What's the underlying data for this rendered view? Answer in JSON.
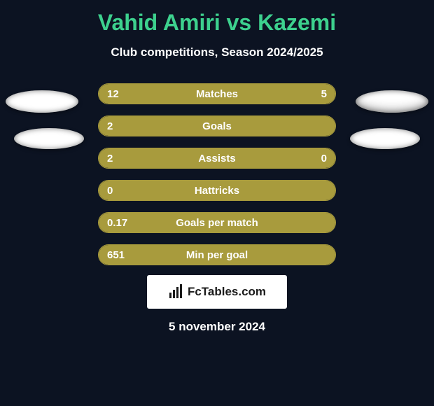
{
  "title": "Vahid Amiri vs Kazemi",
  "subtitle": "Club competitions, Season 2024/2025",
  "date": "5 november 2024",
  "brand": "FcTables.com",
  "colors": {
    "background": "#0c1322",
    "title": "#3dd18e",
    "text": "#ffffff",
    "bar_fill": "#a89b3d",
    "bar_border": "#a79a3c",
    "brand_bg": "#ffffff",
    "brand_text": "#1a1a1a",
    "ellipse": "#ffffff"
  },
  "bars": [
    {
      "label": "Matches",
      "left_val": "12",
      "right_val": "5",
      "left_pct": 70,
      "right_pct": 30,
      "show_right_fill": true
    },
    {
      "label": "Goals",
      "left_val": "2",
      "right_val": "",
      "left_pct": 100,
      "right_pct": 0,
      "show_right_fill": false
    },
    {
      "label": "Assists",
      "left_val": "2",
      "right_val": "0",
      "left_pct": 79,
      "right_pct": 21,
      "show_right_fill": true
    },
    {
      "label": "Hattricks",
      "left_val": "0",
      "right_val": "",
      "left_pct": 100,
      "right_pct": 0,
      "show_right_fill": false
    },
    {
      "label": "Goals per match",
      "left_val": "0.17",
      "right_val": "",
      "left_pct": 100,
      "right_pct": 0,
      "show_right_fill": false
    },
    {
      "label": "Min per goal",
      "left_val": "651",
      "right_val": "",
      "left_pct": 100,
      "right_pct": 0,
      "show_right_fill": false
    }
  ]
}
